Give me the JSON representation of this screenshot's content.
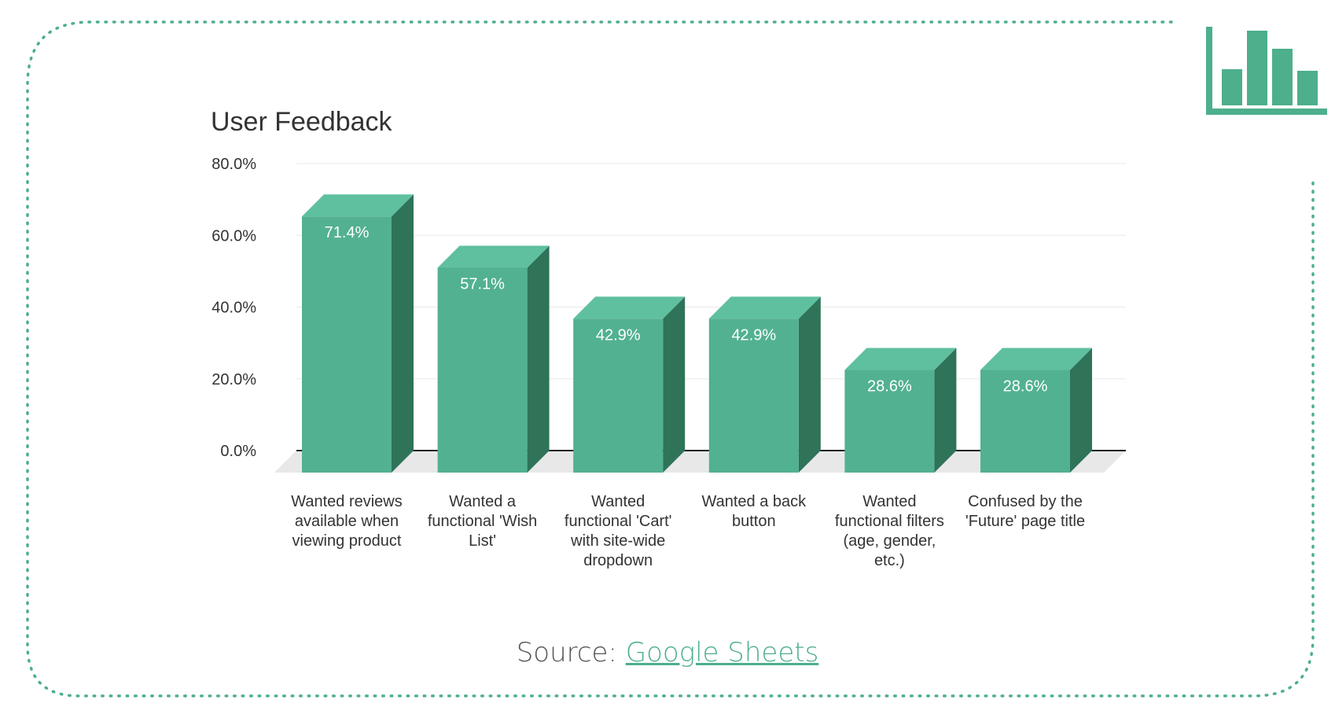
{
  "colors": {
    "bar_front": "#52b191",
    "bar_top": "#5fc0a0",
    "bar_side": "#2f7359",
    "frame": "#4daf8c",
    "floor": "#e8e8e8",
    "grid": "#e8e8e8",
    "axis": "#222222"
  },
  "icons": {
    "corner": "bar-chart-icon"
  },
  "source": {
    "prefix": "Source: ",
    "link_text": "Google Sheets"
  },
  "chart_data": {
    "type": "bar",
    "title": "User Feedback",
    "xlabel": "",
    "ylabel": "",
    "ylim": [
      0,
      80
    ],
    "yticks": [
      "0.0%",
      "20.0%",
      "40.0%",
      "60.0%",
      "80.0%"
    ],
    "grid": true,
    "style": "3d",
    "categories": [
      [
        "Wanted reviews",
        "available when",
        "viewing product"
      ],
      [
        "Wanted a",
        "functional 'Wish",
        "List'"
      ],
      [
        "Wanted",
        "functional 'Cart'",
        "with site-wide",
        "dropdown"
      ],
      [
        "Wanted a back",
        "button"
      ],
      [
        "Wanted",
        "functional filters",
        "(age, gender,",
        "etc.)"
      ],
      [
        "Confused by the",
        "'Future' page title"
      ]
    ],
    "values": [
      71.4,
      57.1,
      42.9,
      42.9,
      28.6,
      28.6
    ],
    "data_labels": [
      "71.4%",
      "57.1%",
      "42.9%",
      "42.9%",
      "28.6%",
      "28.6%"
    ]
  }
}
